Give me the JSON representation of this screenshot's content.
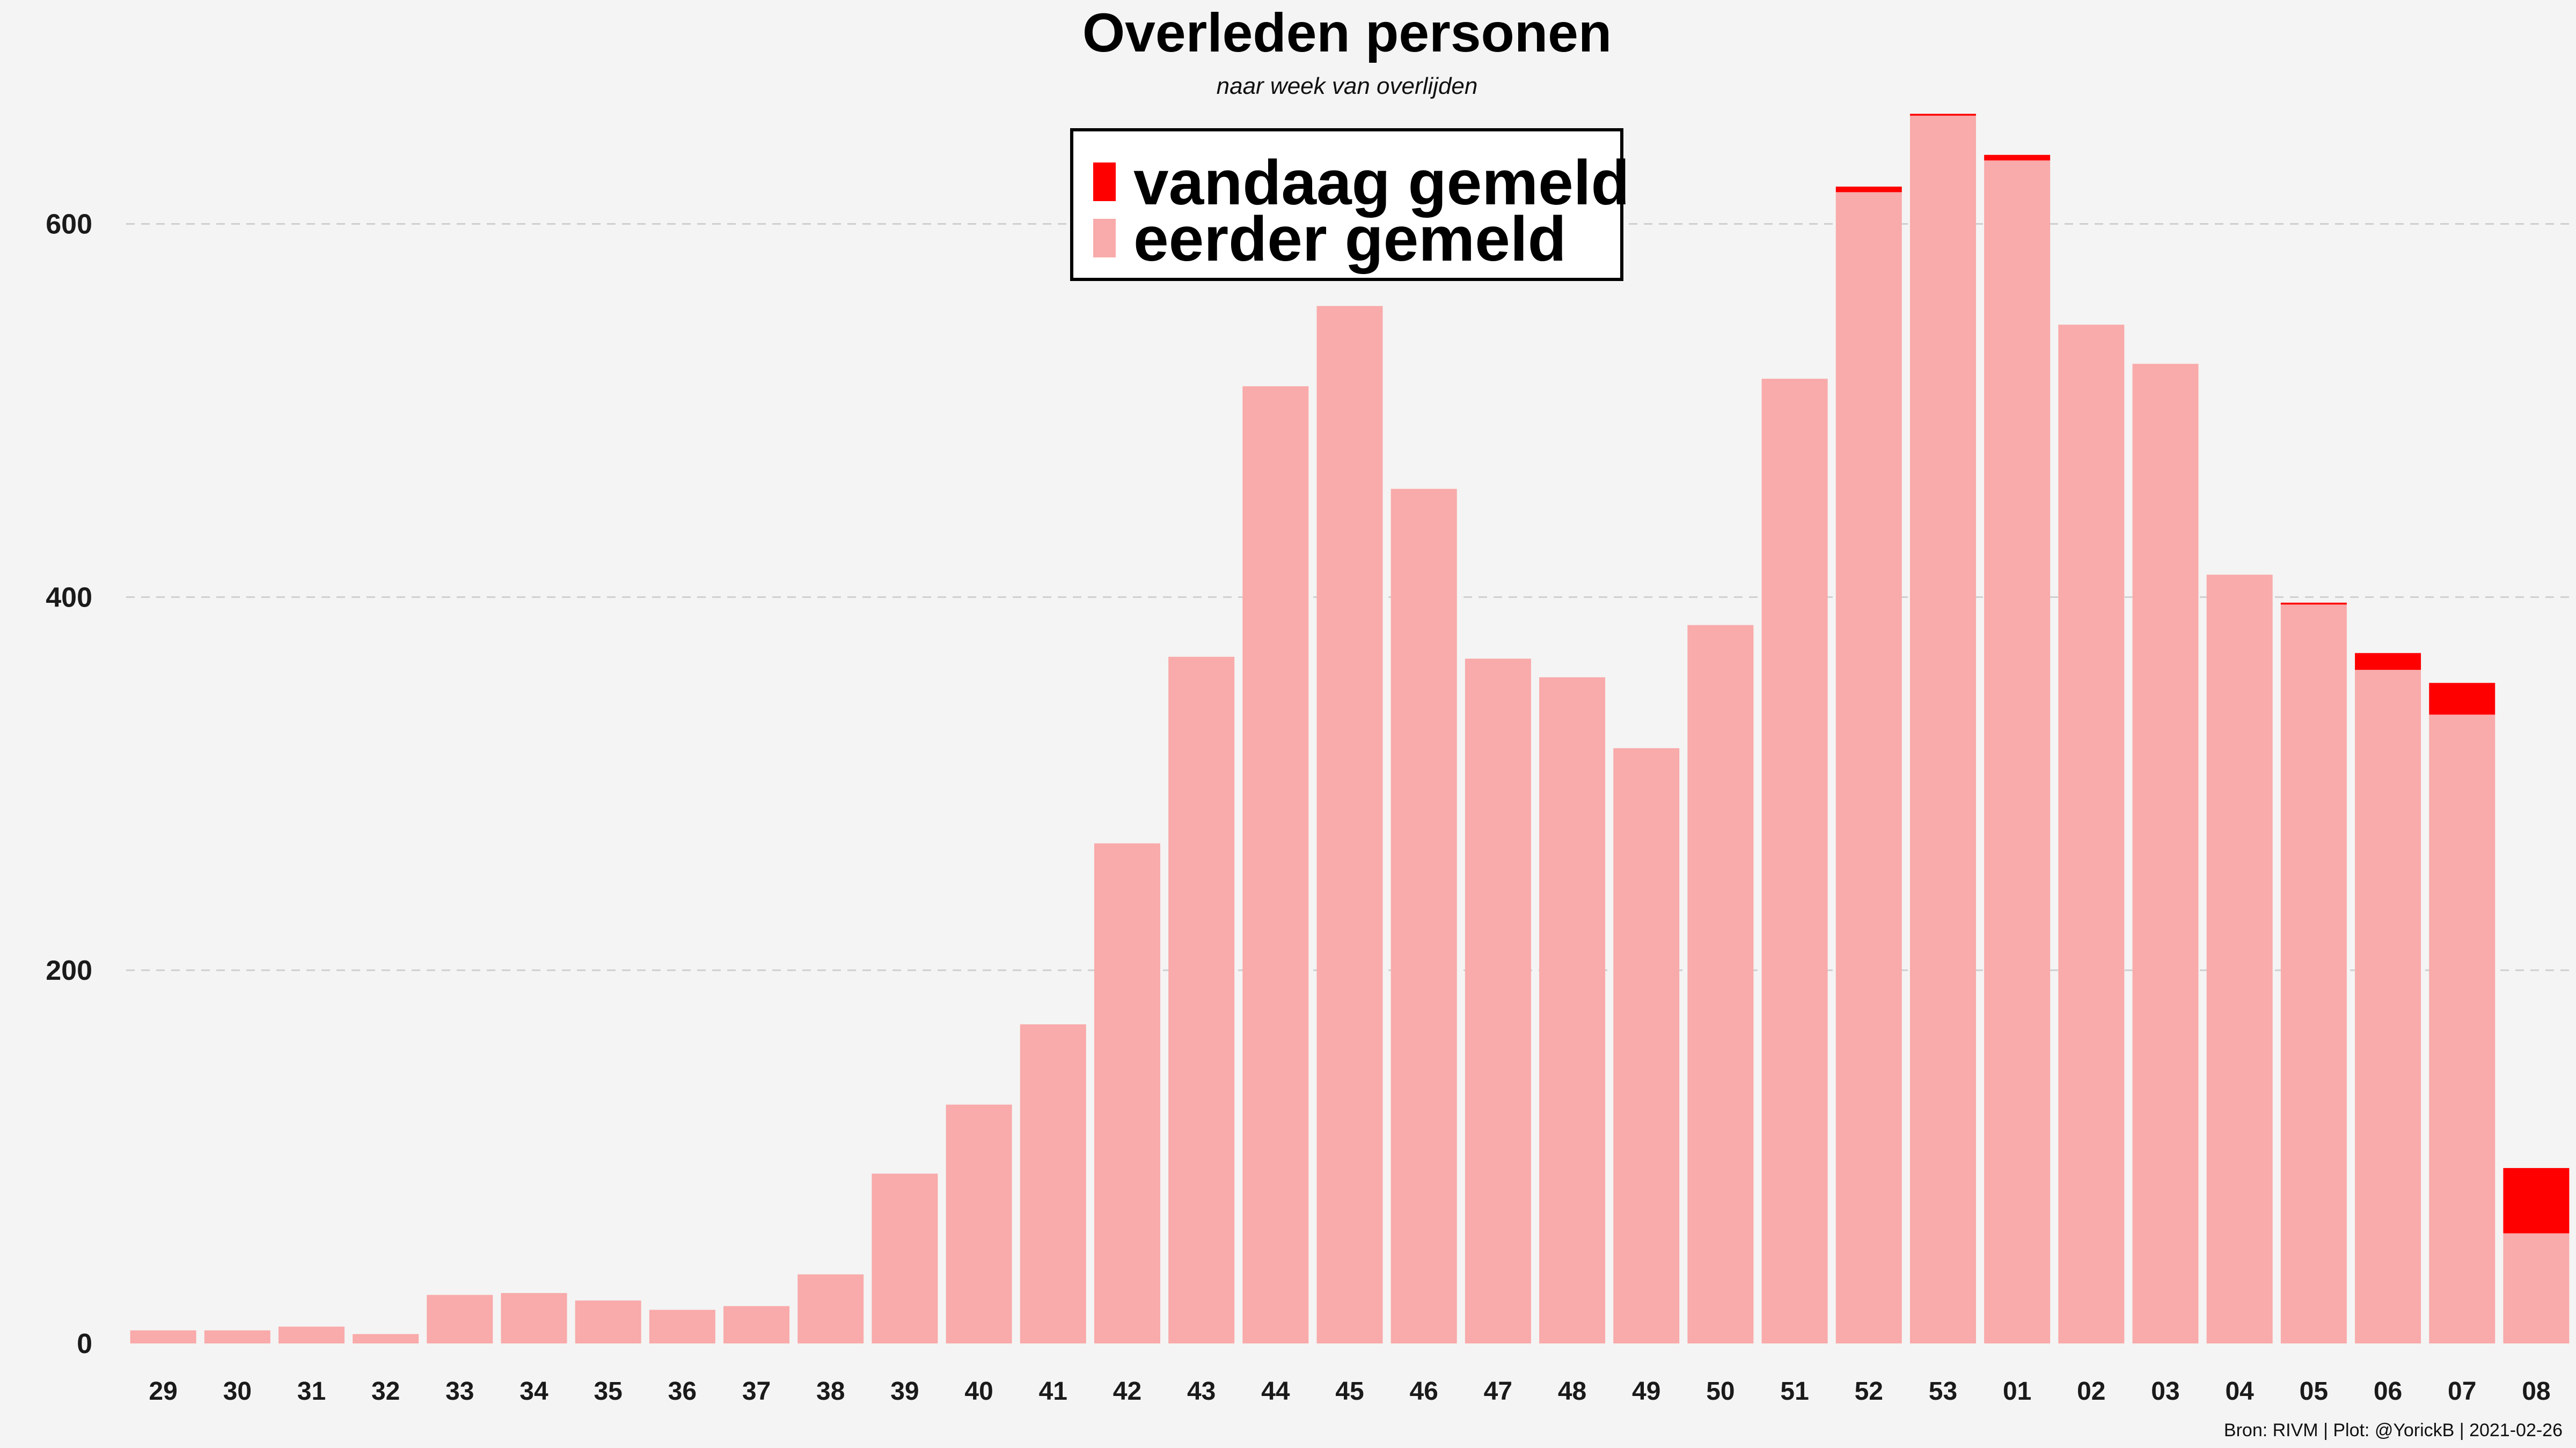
{
  "chart_data": {
    "type": "bar",
    "title": "Overleden personen",
    "subtitle": "naar week van overlijden",
    "xlabel": "",
    "ylabel": "",
    "ylim": [
      0,
      660
    ],
    "yticks": [
      "0",
      "200",
      "400",
      "600"
    ],
    "grid": true,
    "stacked": true,
    "legend_position": "top-center",
    "categories": [
      "29",
      "30",
      "31",
      "32",
      "33",
      "34",
      "35",
      "36",
      "37",
      "38",
      "39",
      "40",
      "41",
      "42",
      "43",
      "44",
      "45",
      "46",
      "47",
      "48",
      "49",
      "50",
      "51",
      "52",
      "53",
      "01",
      "02",
      "03",
      "04",
      "05",
      "06",
      "07",
      "08"
    ],
    "series": [
      {
        "name": "eerder gemeld",
        "color": "#f9aaaa",
        "values": [
          7,
          7,
          9,
          5,
          26,
          27,
          23,
          18,
          20,
          37,
          91,
          128,
          171,
          268,
          368,
          513,
          556,
          458,
          367,
          357,
          319,
          385,
          517,
          617,
          658,
          634,
          546,
          525,
          412,
          396,
          361,
          337,
          59
        ]
      },
      {
        "name": "vandaag gemeld",
        "color": "#ff0000",
        "values": [
          0,
          0,
          0,
          0,
          0,
          0,
          0,
          0,
          0,
          0,
          0,
          0,
          0,
          0,
          0,
          0,
          0,
          0,
          0,
          0,
          0,
          0,
          0,
          3,
          1,
          3,
          0,
          0,
          0,
          1,
          9,
          17,
          35
        ]
      }
    ],
    "legend": [
      "vandaag gemeld",
      "eerder gemeld"
    ],
    "caption": "Bron: RIVM | Plot: @YorickB |  2021-02-26"
  }
}
